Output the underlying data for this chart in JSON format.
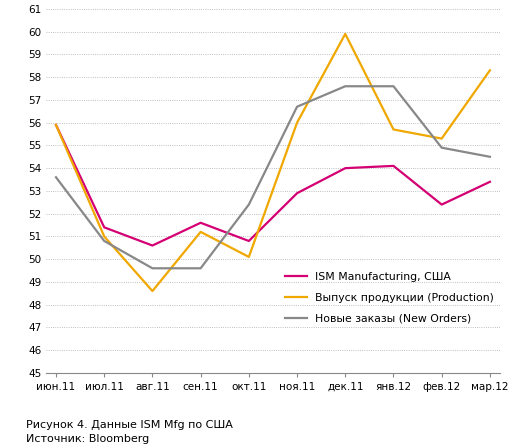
{
  "x_labels": [
    "июн.11",
    "июл.11",
    "авг.11",
    "сен.11",
    "окт.11",
    "ноя.11",
    "дек.11",
    "янв.12",
    "фев.12",
    "мар.12"
  ],
  "ism_manufacturing": [
    55.9,
    51.4,
    50.6,
    51.6,
    50.8,
    52.9,
    54.0,
    54.1,
    52.4,
    53.4
  ],
  "production": [
    55.9,
    51.0,
    48.6,
    51.2,
    50.1,
    56.0,
    59.9,
    55.7,
    55.3,
    58.3
  ],
  "new_orders": [
    53.6,
    50.8,
    49.6,
    49.6,
    52.4,
    56.7,
    57.6,
    57.6,
    54.9,
    54.5
  ],
  "ism_color": "#d40073",
  "production_color": "#f0a800",
  "new_orders_color": "#888888",
  "ylim": [
    45,
    61
  ],
  "yticks": [
    45,
    46,
    47,
    48,
    49,
    50,
    51,
    52,
    53,
    54,
    55,
    56,
    57,
    58,
    59,
    60,
    61
  ],
  "legend_ism": "ISM Manufacturing, США",
  "legend_production": "Выпуск продукции (Production)",
  "legend_new_orders": "Новые заказы (New Orders)",
  "caption_line1": "Рисунок 4. Данные ISM Mfg по США",
  "caption_line2": "Источник: Bloomberg",
  "background_color": "#ffffff",
  "grid_color": "#aaaaaa",
  "linewidth": 1.6
}
